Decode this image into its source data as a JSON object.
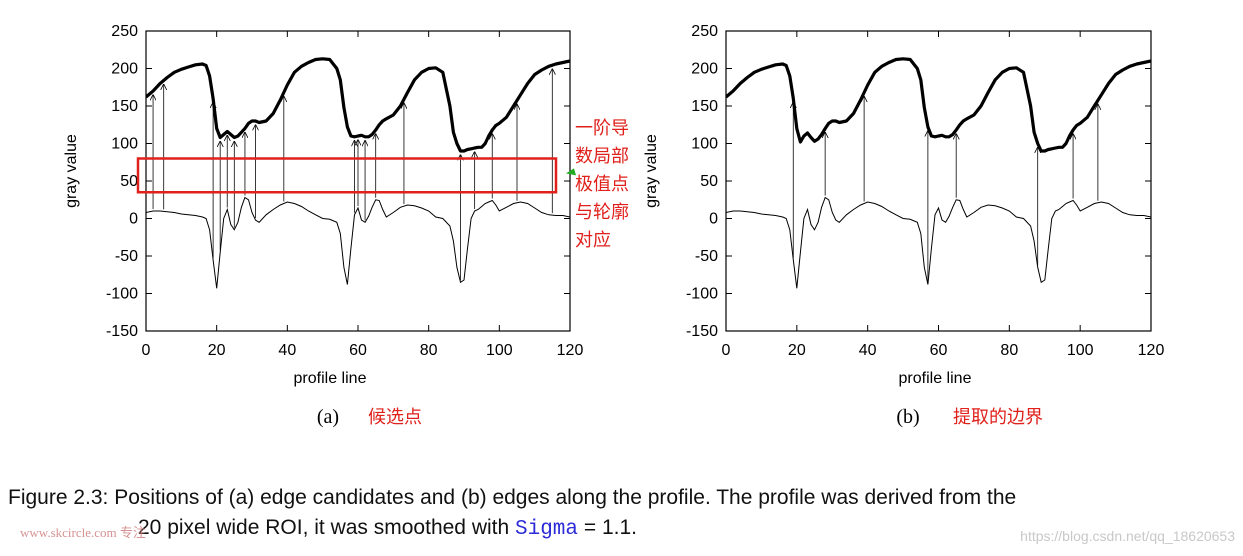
{
  "chart_data": [
    {
      "type": "line",
      "panel": "a",
      "subcaption_letter": "(a)",
      "subcaption_cn": "候选点",
      "xlabel": "profile line",
      "ylabel": "gray value",
      "xlim": [
        0,
        120
      ],
      "ylim": [
        -150,
        250
      ],
      "xticks": [
        0,
        20,
        40,
        60,
        80,
        100,
        120
      ],
      "yticks": [
        250,
        200,
        150,
        100,
        50,
        0,
        -50,
        -100,
        -150
      ],
      "series": [
        {
          "x": [
            0,
            2,
            4,
            6,
            8,
            10,
            12,
            14,
            16,
            17,
            18,
            19,
            20,
            21,
            22,
            23,
            24,
            25,
            26,
            27,
            28,
            29,
            30,
            31,
            32,
            34,
            36,
            38,
            40,
            42,
            44,
            46,
            48,
            50,
            52,
            54,
            55,
            56,
            57,
            58,
            59,
            60,
            61,
            62,
            63,
            64,
            65,
            66,
            67,
            68,
            70,
            72,
            74,
            76,
            78,
            80,
            82,
            84,
            86,
            87,
            88,
            89,
            90,
            91,
            92,
            93,
            94,
            95,
            96,
            97,
            98,
            99,
            100,
            102,
            104,
            106,
            108,
            110,
            112,
            114,
            116,
            118,
            120
          ],
          "values": [
            162,
            170,
            180,
            188,
            195,
            199,
            202,
            205,
            206,
            204,
            190,
            160,
            120,
            108,
            112,
            116,
            112,
            108,
            110,
            115,
            120,
            127,
            130,
            130,
            128,
            130,
            140,
            158,
            178,
            195,
            203,
            208,
            212,
            213,
            212,
            200,
            185,
            148,
            122,
            110,
            109,
            110,
            111,
            109,
            109,
            112,
            118,
            125,
            130,
            133,
            138,
            150,
            168,
            185,
            195,
            200,
            201,
            195,
            150,
            115,
            100,
            90,
            90,
            92,
            93,
            94,
            95,
            95,
            100,
            110,
            118,
            124,
            127,
            135,
            150,
            165,
            180,
            192,
            198,
            203,
            206,
            208,
            210
          ]
        },
        {
          "x": [
            0,
            2,
            4,
            6,
            8,
            10,
            12,
            14,
            16,
            17,
            18,
            19,
            20,
            21,
            22,
            23,
            24,
            25,
            26,
            27,
            28,
            29,
            30,
            31,
            32,
            34,
            36,
            38,
            40,
            42,
            44,
            46,
            48,
            50,
            52,
            54,
            55,
            56,
            57,
            58,
            59,
            60,
            61,
            62,
            63,
            64,
            65,
            66,
            67,
            68,
            70,
            72,
            74,
            76,
            78,
            80,
            82,
            84,
            86,
            87,
            88,
            89,
            90,
            91,
            92,
            93,
            94,
            95,
            96,
            97,
            98,
            99,
            100,
            102,
            104,
            106,
            108,
            110,
            112,
            114,
            116,
            118,
            120
          ],
          "values": [
            8,
            10,
            10,
            9,
            8,
            6,
            5,
            4,
            2,
            0,
            -15,
            -55,
            -93,
            -45,
            0,
            12,
            -8,
            -15,
            -5,
            15,
            28,
            25,
            8,
            -2,
            -5,
            5,
            12,
            18,
            22,
            20,
            16,
            10,
            5,
            0,
            -1,
            -5,
            -20,
            -65,
            -88,
            -40,
            5,
            14,
            -2,
            -5,
            3,
            15,
            25,
            24,
            12,
            2,
            8,
            15,
            18,
            17,
            14,
            10,
            2,
            0,
            -10,
            -30,
            -65,
            -85,
            -82,
            -40,
            0,
            10,
            12,
            16,
            20,
            22,
            24,
            18,
            10,
            15,
            20,
            22,
            20,
            14,
            8,
            5,
            4,
            4,
            2
          ]
        }
      ],
      "candidate_arrows_x": [
        2,
        5,
        19,
        21,
        23,
        25,
        28,
        31,
        39,
        59,
        60,
        62,
        65,
        73,
        89,
        93,
        98,
        105,
        115
      ],
      "annotation_box_y": [
        35,
        80
      ],
      "annotation_lines_cn": [
        "一阶导",
        "数局部",
        "极值点",
        "与轮廓",
        "对应"
      ]
    },
    {
      "type": "line",
      "panel": "b",
      "subcaption_letter": "(b)",
      "subcaption_cn": "提取的边界",
      "xlabel": "profile line",
      "ylabel": "gray value",
      "xlim": [
        0,
        120
      ],
      "ylim": [
        -150,
        250
      ],
      "xticks": [
        0,
        20,
        40,
        60,
        80,
        100,
        120
      ],
      "yticks": [
        250,
        200,
        150,
        100,
        50,
        0,
        -50,
        -100,
        -150
      ],
      "series": [
        {
          "x": [
            0,
            2,
            4,
            6,
            8,
            10,
            12,
            14,
            16,
            17,
            18,
            19,
            20,
            21,
            22,
            23,
            24,
            25,
            26,
            27,
            28,
            29,
            30,
            31,
            32,
            34,
            36,
            38,
            40,
            42,
            44,
            46,
            48,
            50,
            52,
            54,
            55,
            56,
            57,
            58,
            59,
            60,
            61,
            62,
            63,
            64,
            65,
            66,
            67,
            68,
            70,
            72,
            74,
            76,
            78,
            80,
            82,
            84,
            86,
            87,
            88,
            89,
            90,
            91,
            92,
            93,
            94,
            95,
            96,
            97,
            98,
            99,
            100,
            102,
            104,
            106,
            108,
            110,
            112,
            114,
            116,
            118,
            120
          ],
          "values": [
            162,
            170,
            180,
            188,
            195,
            199,
            202,
            205,
            206,
            204,
            190,
            160,
            120,
            102,
            110,
            114,
            108,
            103,
            106,
            112,
            120,
            127,
            130,
            130,
            128,
            130,
            140,
            158,
            178,
            195,
            203,
            208,
            212,
            213,
            212,
            200,
            185,
            148,
            122,
            110,
            109,
            110,
            111,
            109,
            109,
            112,
            118,
            125,
            130,
            133,
            138,
            150,
            168,
            185,
            195,
            200,
            201,
            195,
            150,
            115,
            100,
            90,
            90,
            92,
            93,
            94,
            95,
            95,
            100,
            110,
            118,
            124,
            127,
            135,
            150,
            165,
            180,
            192,
            198,
            203,
            206,
            208,
            210
          ]
        },
        {
          "x": [
            0,
            2,
            4,
            6,
            8,
            10,
            12,
            14,
            16,
            17,
            18,
            19,
            20,
            21,
            22,
            23,
            24,
            25,
            26,
            27,
            28,
            29,
            30,
            31,
            32,
            34,
            36,
            38,
            40,
            42,
            44,
            46,
            48,
            50,
            52,
            54,
            55,
            56,
            57,
            58,
            59,
            60,
            61,
            62,
            63,
            64,
            65,
            66,
            67,
            68,
            70,
            72,
            74,
            76,
            78,
            80,
            82,
            84,
            86,
            87,
            88,
            89,
            90,
            91,
            92,
            93,
            94,
            95,
            96,
            97,
            98,
            99,
            100,
            102,
            104,
            106,
            108,
            110,
            112,
            114,
            116,
            118,
            120
          ],
          "values": [
            8,
            10,
            10,
            9,
            8,
            6,
            5,
            4,
            2,
            0,
            -15,
            -55,
            -93,
            -45,
            0,
            12,
            -8,
            -15,
            -5,
            15,
            28,
            25,
            8,
            -2,
            -5,
            5,
            12,
            18,
            22,
            20,
            16,
            10,
            5,
            0,
            -1,
            -5,
            -20,
            -65,
            -88,
            -40,
            5,
            14,
            -2,
            -5,
            3,
            15,
            25,
            24,
            12,
            2,
            8,
            15,
            18,
            17,
            14,
            10,
            2,
            0,
            -10,
            -30,
            -65,
            -85,
            -82,
            -40,
            0,
            10,
            12,
            16,
            20,
            22,
            24,
            18,
            10,
            15,
            20,
            22,
            20,
            14,
            8,
            5,
            4,
            4,
            2
          ]
        }
      ],
      "edge_arrows_x": [
        19,
        28,
        39,
        57,
        65,
        88,
        98,
        105
      ]
    }
  ],
  "caption": {
    "line1": "Figure 2.3: Positions of (a) edge candidates and (b) edges along the profile.  The profile was derived from the",
    "line2_a": "20 pixel wide ROI, it was smoothed with ",
    "sigma": "Sigma",
    "line2_b": " = 1.1."
  },
  "watermarks": {
    "left": "www.skcircle.com 专注",
    "right": "https://blog.csdn.net/qq_18620653"
  },
  "colors": {
    "annotation": "#e0201b",
    "marker": "#22aa22",
    "sigma": "#2b2bd8"
  }
}
